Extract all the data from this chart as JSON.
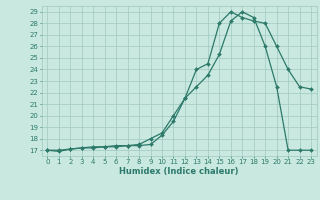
{
  "line1_x": [
    0,
    1,
    2,
    3,
    4,
    5,
    6,
    7,
    8,
    9,
    10,
    11,
    12,
    13,
    14,
    15,
    16,
    17,
    18,
    19,
    20,
    21,
    22,
    23
  ],
  "line1_y": [
    17,
    16.9,
    17.1,
    17.2,
    17.2,
    17.3,
    17.3,
    17.4,
    17.4,
    17.5,
    18.3,
    19.5,
    21.5,
    24.0,
    24.5,
    28.0,
    29.0,
    28.5,
    28.2,
    28.0,
    26.0,
    24.0,
    22.5,
    22.3
  ],
  "line2_x": [
    0,
    1,
    2,
    3,
    4,
    5,
    6,
    7,
    8,
    9,
    10,
    11,
    12,
    13,
    14,
    15,
    16,
    17,
    18,
    19,
    20,
    21,
    22,
    23
  ],
  "line2_y": [
    17,
    17,
    17.1,
    17.2,
    17.3,
    17.3,
    17.4,
    17.4,
    17.5,
    18.0,
    18.5,
    20.0,
    21.5,
    22.5,
    23.5,
    25.3,
    28.2,
    29.0,
    28.5,
    26.0,
    22.5,
    17.0,
    17.0,
    17.0
  ],
  "line_color": "#2d7a6a",
  "bg_color": "#c8e8e0",
  "grid_color": "#a0c8c0",
  "xlabel": "Humidex (Indice chaleur)",
  "xlim": [
    -0.5,
    23.5
  ],
  "ylim": [
    16.5,
    29.5
  ],
  "xticks": [
    0,
    1,
    2,
    3,
    4,
    5,
    6,
    7,
    8,
    9,
    10,
    11,
    12,
    13,
    14,
    15,
    16,
    17,
    18,
    19,
    20,
    21,
    22,
    23
  ],
  "yticks": [
    17,
    18,
    19,
    20,
    21,
    22,
    23,
    24,
    25,
    26,
    27,
    28,
    29
  ],
  "tick_fontsize": 5.0,
  "xlabel_fontsize": 6.0
}
